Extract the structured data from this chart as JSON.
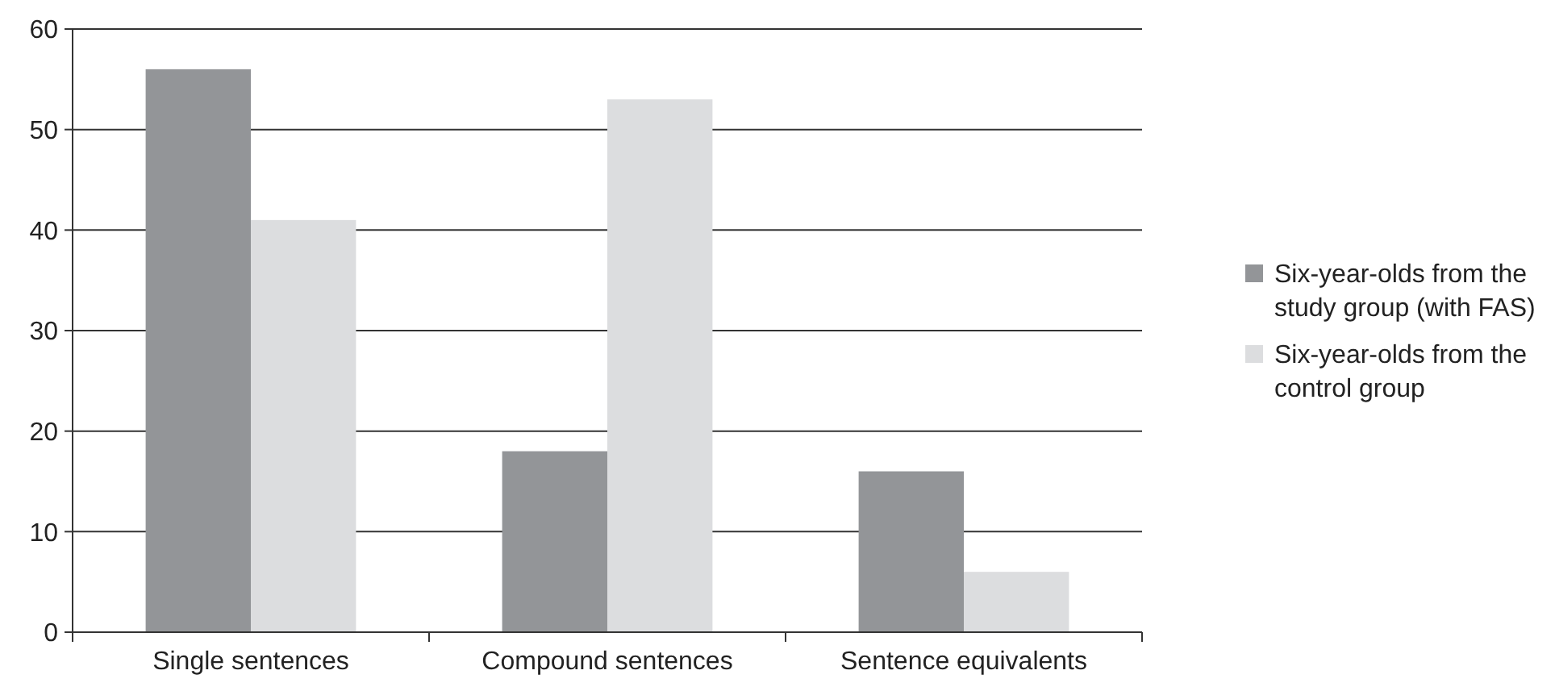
{
  "chart_data": {
    "type": "bar",
    "categories": [
      "Single sentences",
      "Compound sentences",
      "Sentence equivalents"
    ],
    "series": [
      {
        "name": "Six-year-olds from the study group (with FAS)",
        "color": "#939598",
        "values": [
          56,
          18,
          16
        ]
      },
      {
        "name": "Six-year-olds from the control group",
        "color": "#dcdddf",
        "values": [
          41,
          53,
          6
        ]
      }
    ],
    "ylim": [
      0,
      60
    ],
    "yticks": [
      0,
      10,
      20,
      30,
      40,
      50,
      60
    ],
    "grid": "y",
    "legend": "right"
  }
}
